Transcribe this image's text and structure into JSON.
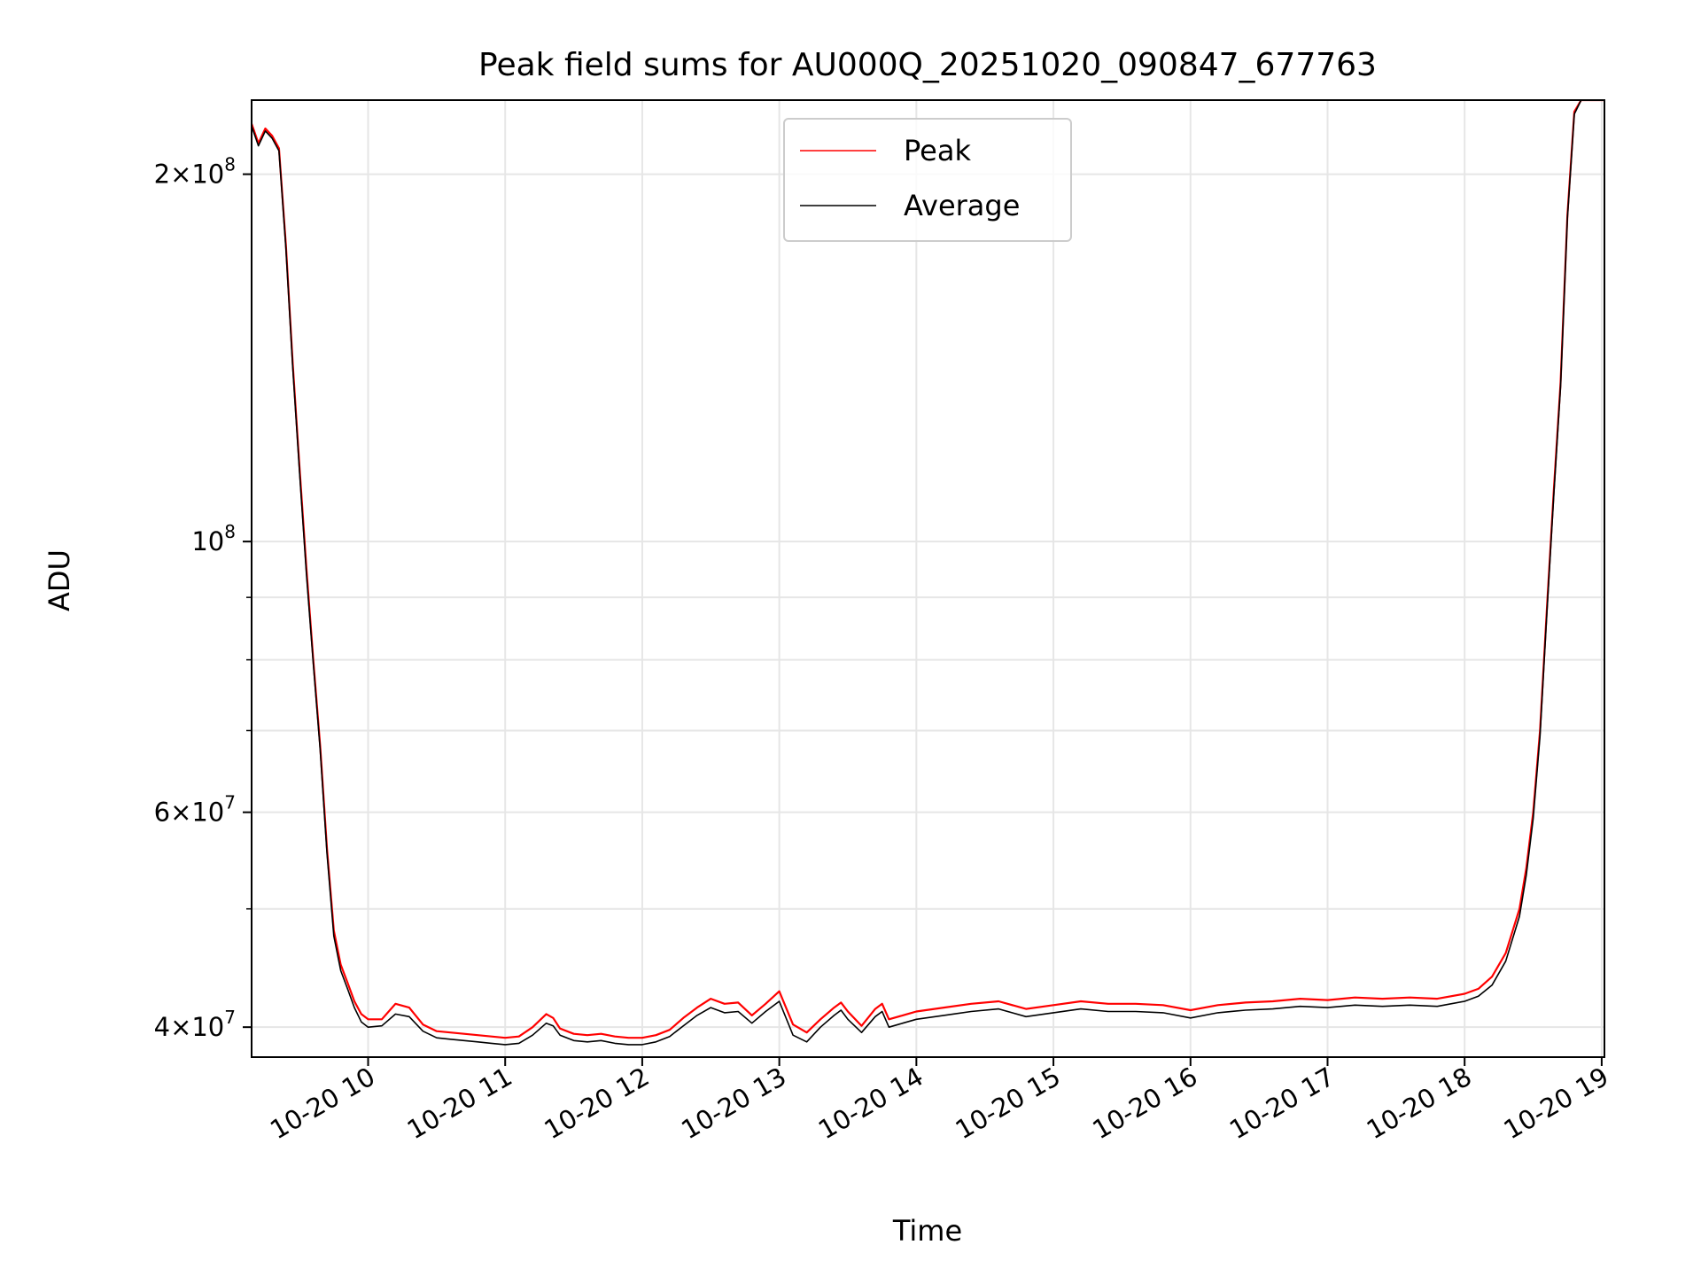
{
  "chart_data": {
    "type": "line",
    "title": "Peak field sums for AU000Q_20251020_090847_677763",
    "xlabel": "Time",
    "ylabel": "ADU",
    "yscale": "log",
    "x_unit": "hours",
    "xlim": [
      9.15,
      19.02
    ],
    "ylim": [
      37800000,
      230000000
    ],
    "grid": true,
    "legend_position": "upper center",
    "x_ticks": [
      {
        "value": 10,
        "label": "10-20 10"
      },
      {
        "value": 11,
        "label": "10-20 11"
      },
      {
        "value": 12,
        "label": "10-20 12"
      },
      {
        "value": 13,
        "label": "10-20 13"
      },
      {
        "value": 14,
        "label": "10-20 14"
      },
      {
        "value": 15,
        "label": "10-20 15"
      },
      {
        "value": 16,
        "label": "10-20 16"
      },
      {
        "value": 17,
        "label": "10-20 17"
      },
      {
        "value": 18,
        "label": "10-20 18"
      },
      {
        "value": 19,
        "label": "10-20 19"
      }
    ],
    "y_major_ticks": [
      {
        "value": 40000000,
        "base": "4",
        "exp": "7"
      },
      {
        "value": 60000000,
        "base": "6",
        "exp": "7"
      },
      {
        "value": 100000000,
        "base": "",
        "exp": "8"
      },
      {
        "value": 200000000,
        "base": "2",
        "exp": "8"
      }
    ],
    "y_minor_ticks": [
      50000000,
      70000000,
      80000000,
      90000000
    ],
    "series": [
      {
        "name": "Peak",
        "color": "#ff0000",
        "x": [
          9.15,
          9.2,
          9.25,
          9.3,
          9.35,
          9.4,
          9.45,
          9.5,
          9.55,
          9.6,
          9.65,
          9.7,
          9.75,
          9.8,
          9.85,
          9.9,
          9.95,
          10.0,
          10.1,
          10.2,
          10.3,
          10.4,
          10.5,
          10.6,
          10.7,
          10.8,
          10.9,
          11.0,
          11.1,
          11.2,
          11.3,
          11.35,
          11.4,
          11.5,
          11.6,
          11.7,
          11.8,
          11.9,
          12.0,
          12.1,
          12.2,
          12.3,
          12.4,
          12.5,
          12.6,
          12.7,
          12.8,
          12.9,
          13.0,
          13.1,
          13.2,
          13.3,
          13.4,
          13.45,
          13.5,
          13.6,
          13.7,
          13.75,
          13.8,
          13.9,
          14.0,
          14.2,
          14.4,
          14.6,
          14.8,
          15.0,
          15.2,
          15.4,
          15.6,
          15.8,
          16.0,
          16.2,
          16.4,
          16.6,
          16.8,
          17.0,
          17.2,
          17.4,
          17.6,
          17.8,
          18.0,
          18.1,
          18.2,
          18.3,
          18.4,
          18.45,
          18.5,
          18.55,
          18.6,
          18.65,
          18.7,
          18.75,
          18.8,
          18.85,
          18.9,
          19.02
        ],
        "y": [
          220000000,
          212000000,
          218000000,
          215000000,
          210000000,
          175000000,
          140000000,
          115000000,
          95000000,
          80000000,
          68000000,
          56000000,
          48000000,
          45000000,
          43500000,
          42000000,
          41000000,
          40600000,
          40600000,
          41800000,
          41500000,
          40200000,
          39700000,
          39600000,
          39500000,
          39400000,
          39300000,
          39200000,
          39300000,
          40000000,
          41000000,
          40700000,
          39900000,
          39500000,
          39400000,
          39500000,
          39300000,
          39200000,
          39200000,
          39400000,
          39800000,
          40700000,
          41500000,
          42200000,
          41800000,
          41900000,
          40900000,
          41800000,
          42800000,
          40200000,
          39600000,
          40600000,
          41500000,
          41900000,
          41200000,
          40100000,
          41400000,
          41800000,
          40600000,
          40900000,
          41200000,
          41500000,
          41800000,
          42000000,
          41400000,
          41700000,
          42000000,
          41800000,
          41800000,
          41700000,
          41300000,
          41700000,
          41900000,
          42000000,
          42200000,
          42100000,
          42300000,
          42200000,
          42300000,
          42200000,
          42600000,
          43000000,
          44000000,
          46000000,
          50000000,
          54000000,
          60000000,
          70000000,
          88000000,
          110000000,
          135000000,
          185000000,
          225000000,
          230000000,
          230000000,
          230000000
        ]
      },
      {
        "name": "Average",
        "color": "#000000",
        "x": [
          9.15,
          9.2,
          9.25,
          9.3,
          9.35,
          9.4,
          9.45,
          9.5,
          9.55,
          9.6,
          9.65,
          9.7,
          9.75,
          9.8,
          9.85,
          9.9,
          9.95,
          10.0,
          10.1,
          10.2,
          10.3,
          10.4,
          10.5,
          10.6,
          10.7,
          10.8,
          10.9,
          11.0,
          11.1,
          11.2,
          11.3,
          11.35,
          11.4,
          11.5,
          11.6,
          11.7,
          11.8,
          11.9,
          12.0,
          12.1,
          12.2,
          12.3,
          12.4,
          12.5,
          12.6,
          12.7,
          12.8,
          12.9,
          13.0,
          13.1,
          13.2,
          13.3,
          13.4,
          13.45,
          13.5,
          13.6,
          13.7,
          13.75,
          13.8,
          13.9,
          14.0,
          14.2,
          14.4,
          14.6,
          14.8,
          15.0,
          15.2,
          15.4,
          15.6,
          15.8,
          16.0,
          16.2,
          16.4,
          16.6,
          16.8,
          17.0,
          17.2,
          17.4,
          17.6,
          17.8,
          18.0,
          18.1,
          18.2,
          18.3,
          18.4,
          18.45,
          18.5,
          18.55,
          18.6,
          18.65,
          18.7,
          18.75,
          18.8,
          18.85,
          18.9,
          19.02
        ],
        "y": [
          219000000,
          211000000,
          217000000,
          214000000,
          209000000,
          174000000,
          139000000,
          114000000,
          94000000,
          79500000,
          67500000,
          55500000,
          47500000,
          44500000,
          43000000,
          41500000,
          40400000,
          40000000,
          40100000,
          41000000,
          40800000,
          39700000,
          39200000,
          39100000,
          39000000,
          38900000,
          38800000,
          38700000,
          38800000,
          39400000,
          40300000,
          40100000,
          39400000,
          39000000,
          38900000,
          39000000,
          38800000,
          38700000,
          38700000,
          38900000,
          39300000,
          40100000,
          40900000,
          41500000,
          41100000,
          41200000,
          40300000,
          41200000,
          42000000,
          39400000,
          38900000,
          40000000,
          40900000,
          41300000,
          40600000,
          39600000,
          40800000,
          41200000,
          40000000,
          40300000,
          40600000,
          40900000,
          41200000,
          41400000,
          40800000,
          41100000,
          41400000,
          41200000,
          41200000,
          41100000,
          40700000,
          41100000,
          41300000,
          41400000,
          41600000,
          41500000,
          41700000,
          41600000,
          41700000,
          41600000,
          42000000,
          42400000,
          43300000,
          45300000,
          49300000,
          53300000,
          59300000,
          69300000,
          87300000,
          109000000,
          134000000,
          184000000,
          224000000,
          230000000,
          230000000,
          230000000
        ]
      }
    ]
  }
}
